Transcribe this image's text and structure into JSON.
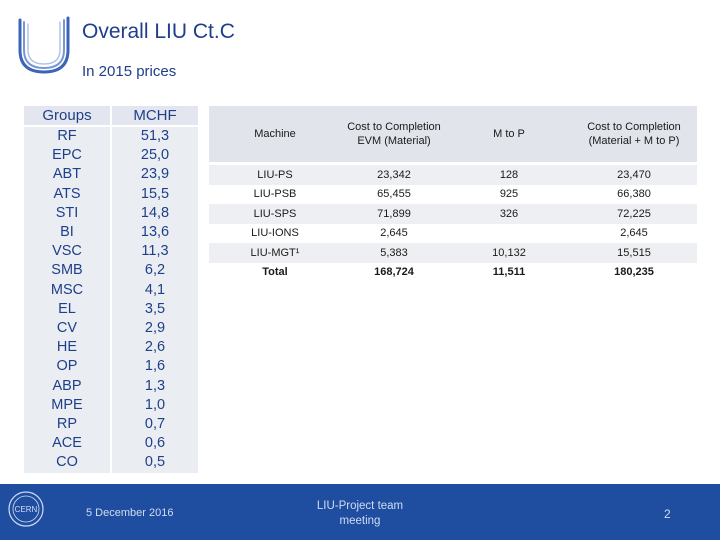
{
  "slide": {
    "title": "Overall LIU Ct.C",
    "subtitle": "In 2015 prices"
  },
  "groups_table": {
    "headers": [
      "Groups",
      "MCHF"
    ],
    "rows": [
      [
        "RF",
        "51,3"
      ],
      [
        "EPC",
        "25,0"
      ],
      [
        "ABT",
        "23,9"
      ],
      [
        "ATS",
        "15,5"
      ],
      [
        "STI",
        "14,8"
      ],
      [
        "BI",
        "13,6"
      ],
      [
        "VSC",
        "11,3"
      ],
      [
        "SMB",
        "6,2"
      ],
      [
        "MSC",
        "4,1"
      ],
      [
        "EL",
        "3,5"
      ],
      [
        "CV",
        "2,9"
      ],
      [
        "HE",
        "2,6"
      ],
      [
        "OP",
        "1,6"
      ],
      [
        "ABP",
        "1,3"
      ],
      [
        "MPE",
        "1,0"
      ],
      [
        "RP",
        "0,7"
      ],
      [
        "ACE",
        "0,6"
      ],
      [
        "CO",
        "0,5"
      ]
    ]
  },
  "machine_table": {
    "headers": {
      "machine": "Machine",
      "evm": "Cost to Completion EVM (Material)",
      "mtop": "M to P",
      "total": "Cost to Completion (Material + M to P)"
    },
    "rows": [
      {
        "machine": "LIU-PS",
        "evm": "23,342",
        "mtop": "128",
        "total": "23,470"
      },
      {
        "machine": "LIU-PSB",
        "evm": "65,455",
        "mtop": "925",
        "total": "66,380"
      },
      {
        "machine": "LIU-SPS",
        "evm": "71,899",
        "mtop": "326",
        "total": "72,225"
      },
      {
        "machine": "LIU-IONS",
        "evm": "2,645",
        "mtop": "",
        "total": "2,645"
      },
      {
        "machine": "LIU-MGT¹",
        "evm": "5,383",
        "mtop": "10,132",
        "total": "15,515"
      },
      {
        "machine": "Total",
        "evm": "168,724",
        "mtop": "11,511",
        "total": "180,235"
      }
    ]
  },
  "footer": {
    "logo_text": "CERN",
    "date": "5 December 2016",
    "project_line1": "LIU-Project team",
    "project_line2": "meeting",
    "page_number": "2"
  },
  "colors": {
    "title": "#1f3f8a",
    "footer_bg": "#1f4ea0"
  }
}
